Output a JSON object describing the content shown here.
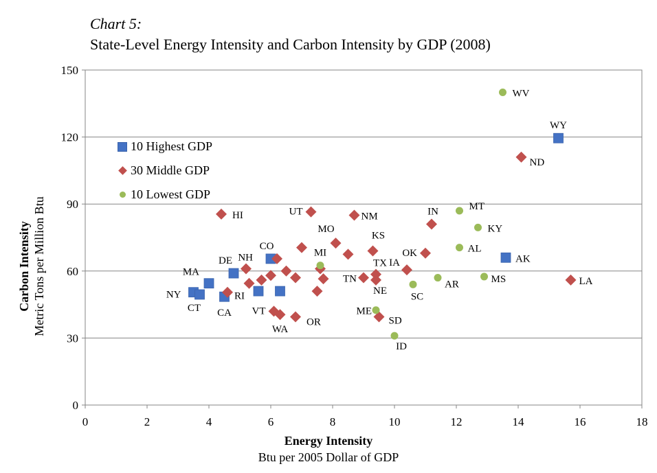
{
  "title": {
    "line1": "Chart 5:",
    "line2": "State-Level Energy Intensity and Carbon Intensity by GDP (2008)"
  },
  "chart_data": {
    "type": "scatter",
    "xlabel": "Energy Intensity",
    "xlabel_sub": "Btu per 2005 Dollar of GDP",
    "ylabel": "Carbon Intensity",
    "ylabel_sub": "Metric Tons per Million Btu",
    "xlim": [
      0,
      18
    ],
    "ylim": [
      0,
      150
    ],
    "x_ticks": [
      "0",
      "2",
      "4",
      "6",
      "8",
      "10",
      "12",
      "14",
      "16",
      "18"
    ],
    "y_ticks": [
      "0",
      "30",
      "60",
      "90",
      "120",
      "150"
    ],
    "grid": "horizontal",
    "legend_position": "upper-left",
    "series": [
      {
        "name": "10 Highest GDP",
        "marker": "square",
        "color": "#4472C4",
        "points": [
          {
            "label": "NY",
            "x": 3.5,
            "y": 50.5
          },
          {
            "label": "CT",
            "x": 3.7,
            "y": 49.5
          },
          {
            "label": "MA",
            "x": 4.0,
            "y": 54.5
          },
          {
            "label": "CA",
            "x": 4.5,
            "y": 48.5
          },
          {
            "label": "DE",
            "x": 4.8,
            "y": 59
          },
          {
            "label": "",
            "x": 5.6,
            "y": 51
          },
          {
            "label": "CO",
            "x": 6.0,
            "y": 65.5
          },
          {
            "label": "",
            "x": 6.3,
            "y": 51
          },
          {
            "label": "AK",
            "x": 13.6,
            "y": 66
          },
          {
            "label": "WY",
            "x": 15.3,
            "y": 119.5
          }
        ]
      },
      {
        "name": "30 Middle GDP",
        "marker": "diamond",
        "color": "#C0504D",
        "points": [
          {
            "label": "HI",
            "x": 4.4,
            "y": 85.5
          },
          {
            "label": "RI",
            "x": 4.6,
            "y": 50.5
          },
          {
            "label": "NH",
            "x": 5.2,
            "y": 61
          },
          {
            "label": "",
            "x": 5.3,
            "y": 54.5
          },
          {
            "label": "",
            "x": 5.7,
            "y": 56
          },
          {
            "label": "",
            "x": 6.0,
            "y": 58
          },
          {
            "label": "",
            "x": 6.2,
            "y": 65.5
          },
          {
            "label": "",
            "x": 6.5,
            "y": 60
          },
          {
            "label": "",
            "x": 6.8,
            "y": 57
          },
          {
            "label": "VT",
            "x": 6.1,
            "y": 42
          },
          {
            "label": "WA",
            "x": 6.3,
            "y": 40.5
          },
          {
            "label": "OR",
            "x": 6.8,
            "y": 39.5
          },
          {
            "label": "",
            "x": 7.0,
            "y": 70.5
          },
          {
            "label": "UT",
            "x": 7.3,
            "y": 86.5
          },
          {
            "label": "",
            "x": 7.5,
            "y": 51
          },
          {
            "label": "",
            "x": 7.6,
            "y": 61
          },
          {
            "label": "",
            "x": 7.7,
            "y": 56.5
          },
          {
            "label": "MO",
            "x": 8.1,
            "y": 72.5
          },
          {
            "label": "",
            "x": 8.5,
            "y": 67.5
          },
          {
            "label": "NM",
            "x": 8.7,
            "y": 85
          },
          {
            "label": "TN",
            "x": 9.0,
            "y": 57
          },
          {
            "label": "KS",
            "x": 9.3,
            "y": 69
          },
          {
            "label": "TX",
            "x": 9.4,
            "y": 58.5
          },
          {
            "label": "NE",
            "x": 9.4,
            "y": 56
          },
          {
            "label": "SD",
            "x": 9.5,
            "y": 39.5
          },
          {
            "label": "IA",
            "x": 10.4,
            "y": 60.5
          },
          {
            "label": "OK",
            "x": 11.0,
            "y": 68
          },
          {
            "label": "IN",
            "x": 11.2,
            "y": 81
          },
          {
            "label": "ND",
            "x": 14.1,
            "y": 111
          },
          {
            "label": "LA",
            "x": 15.7,
            "y": 56
          }
        ]
      },
      {
        "name": "10 Lowest GDP",
        "marker": "circle",
        "color": "#9BBB59",
        "points": [
          {
            "label": "MI",
            "x": 7.6,
            "y": 62.5
          },
          {
            "label": "ME",
            "x": 9.4,
            "y": 42.5
          },
          {
            "label": "ID",
            "x": 10.0,
            "y": 31
          },
          {
            "label": "SC",
            "x": 10.6,
            "y": 54
          },
          {
            "label": "AR",
            "x": 11.4,
            "y": 57
          },
          {
            "label": "AL",
            "x": 12.1,
            "y": 70.5
          },
          {
            "label": "MT",
            "x": 12.1,
            "y": 87
          },
          {
            "label": "KY",
            "x": 12.7,
            "y": 79.5
          },
          {
            "label": "MS",
            "x": 12.9,
            "y": 57.5
          },
          {
            "label": "WV",
            "x": 13.5,
            "y": 140
          }
        ]
      }
    ]
  }
}
